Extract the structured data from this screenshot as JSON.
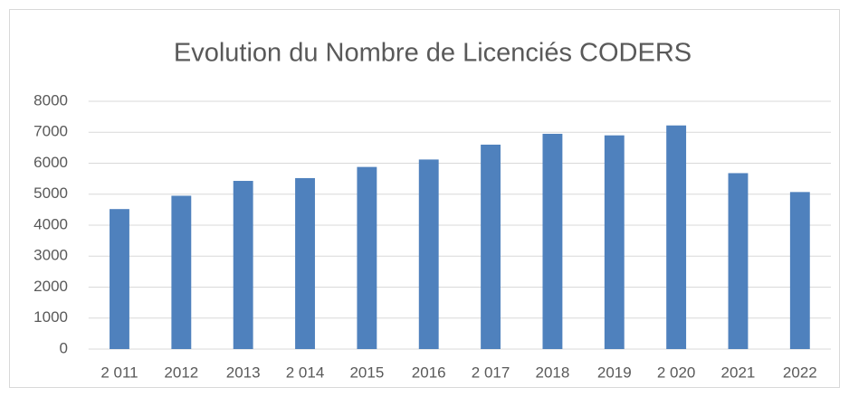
{
  "chart_data": {
    "type": "bar",
    "title": "Evolution du Nombre de Licenciés CODERS",
    "categories": [
      "2 011",
      "2012",
      "2013",
      "2 014",
      "2015",
      "2016",
      "2 017",
      "2018",
      "2019",
      "2 020",
      "2021",
      "2022"
    ],
    "values": [
      4520,
      4950,
      5430,
      5520,
      5880,
      6120,
      6600,
      6950,
      6900,
      7220,
      5680,
      5070
    ],
    "color": "#4f81bd",
    "ylim": [
      0,
      8000
    ],
    "yticks": [
      0,
      1000,
      2000,
      3000,
      4000,
      5000,
      6000,
      7000,
      8000
    ],
    "grid": true
  }
}
